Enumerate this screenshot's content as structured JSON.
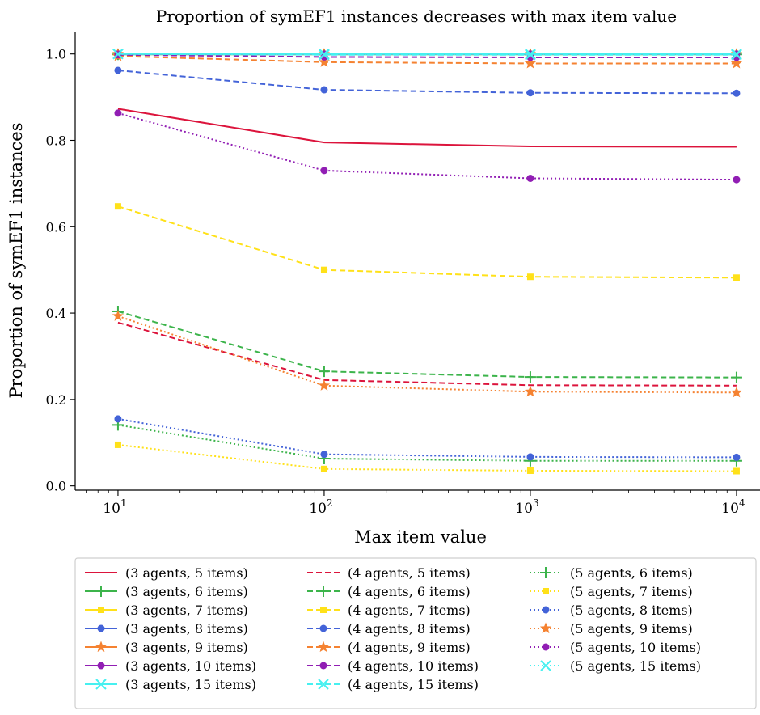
{
  "chart_data": {
    "type": "line",
    "title": "Proportion of symEF1 instances decreases with max item value",
    "xlabel": "Max item value",
    "ylabel": "Proportion of symEF1 instances",
    "x_scale": "log",
    "x": [
      10,
      100,
      1000,
      10000
    ],
    "x_tick_labels": [
      {
        "base": "10",
        "exp": "1"
      },
      {
        "base": "10",
        "exp": "2"
      },
      {
        "base": "10",
        "exp": "3"
      },
      {
        "base": "10",
        "exp": "4"
      }
    ],
    "xlim": [
      6.2,
      13000
    ],
    "ylim": [
      -0.01,
      1.05
    ],
    "y_ticks": [
      "0.0",
      "0.2",
      "0.4",
      "0.6",
      "0.8",
      "1.0"
    ],
    "grid": false,
    "legend_position": "bottom",
    "series": [
      {
        "name": "(3 agents, 5 items)",
        "color": "#dc143c",
        "dash": "solid",
        "marker": "none",
        "values": [
          0.873,
          0.795,
          0.786,
          0.785
        ]
      },
      {
        "name": "(3 agents, 6 items)",
        "color": "#3cb44b",
        "dash": "solid",
        "marker": "plus",
        "values": [
          0.999,
          0.999,
          0.999,
          0.999
        ]
      },
      {
        "name": "(3 agents, 7 items)",
        "color": "#ffe119",
        "dash": "solid",
        "marker": "square",
        "values": [
          1.0,
          1.0,
          1.0,
          1.0
        ]
      },
      {
        "name": "(3 agents, 8 items)",
        "color": "#4363d8",
        "dash": "solid",
        "marker": "circle",
        "values": [
          1.0,
          1.0,
          1.0,
          1.0
        ]
      },
      {
        "name": "(3 agents, 9 items)",
        "color": "#f58231",
        "dash": "solid",
        "marker": "star",
        "values": [
          1.0,
          1.0,
          1.0,
          1.0
        ]
      },
      {
        "name": "(3 agents, 10 items)",
        "color": "#911eb4",
        "dash": "solid",
        "marker": "circle",
        "values": [
          1.0,
          1.0,
          1.0,
          1.0
        ]
      },
      {
        "name": "(3 agents, 15 items)",
        "color": "#46f0f0",
        "dash": "solid",
        "marker": "x",
        "values": [
          1.0,
          1.0,
          1.0,
          1.0
        ]
      },
      {
        "name": "(4 agents, 5 items)",
        "color": "#dc143c",
        "dash": "dashed",
        "marker": "none",
        "values": [
          0.378,
          0.245,
          0.233,
          0.232
        ]
      },
      {
        "name": "(4 agents, 6 items)",
        "color": "#3cb44b",
        "dash": "dashed",
        "marker": "plus",
        "values": [
          0.404,
          0.265,
          0.252,
          0.251
        ]
      },
      {
        "name": "(4 agents, 7 items)",
        "color": "#ffe119",
        "dash": "dashed",
        "marker": "square",
        "values": [
          0.647,
          0.5,
          0.484,
          0.482
        ]
      },
      {
        "name": "(4 agents, 8 items)",
        "color": "#4363d8",
        "dash": "dashed",
        "marker": "circle",
        "values": [
          0.962,
          0.917,
          0.91,
          0.909
        ]
      },
      {
        "name": "(4 agents, 9 items)",
        "color": "#f58231",
        "dash": "dashed",
        "marker": "star",
        "values": [
          0.995,
          0.981,
          0.978,
          0.978
        ]
      },
      {
        "name": "(4 agents, 10 items)",
        "color": "#911eb4",
        "dash": "dashed",
        "marker": "circle",
        "values": [
          0.998,
          0.993,
          0.992,
          0.992
        ]
      },
      {
        "name": "(4 agents, 15 items)",
        "color": "#46f0f0",
        "dash": "dashed",
        "marker": "x",
        "values": [
          1.0,
          0.998,
          0.998,
          0.998
        ]
      },
      {
        "name": "(5 agents, 6 items)",
        "color": "#3cb44b",
        "dash": "dotted",
        "marker": "plus",
        "values": [
          0.141,
          0.063,
          0.058,
          0.058
        ]
      },
      {
        "name": "(5 agents, 7 items)",
        "color": "#ffe119",
        "dash": "dotted",
        "marker": "square",
        "values": [
          0.095,
          0.039,
          0.035,
          0.034
        ]
      },
      {
        "name": "(5 agents, 8 items)",
        "color": "#4363d8",
        "dash": "dotted",
        "marker": "circle",
        "values": [
          0.155,
          0.073,
          0.067,
          0.066
        ]
      },
      {
        "name": "(5 agents, 9 items)",
        "color": "#f58231",
        "dash": "dotted",
        "marker": "star",
        "values": [
          0.393,
          0.232,
          0.218,
          0.216
        ]
      },
      {
        "name": "(5 agents, 10 items)",
        "color": "#911eb4",
        "dash": "dotted",
        "marker": "circle",
        "values": [
          0.863,
          0.73,
          0.712,
          0.709
        ]
      },
      {
        "name": "(5 agents, 15 items)",
        "color": "#46f0f0",
        "dash": "dotted",
        "marker": "x",
        "values": [
          1.0,
          0.999,
          0.999,
          0.999
        ]
      }
    ]
  }
}
